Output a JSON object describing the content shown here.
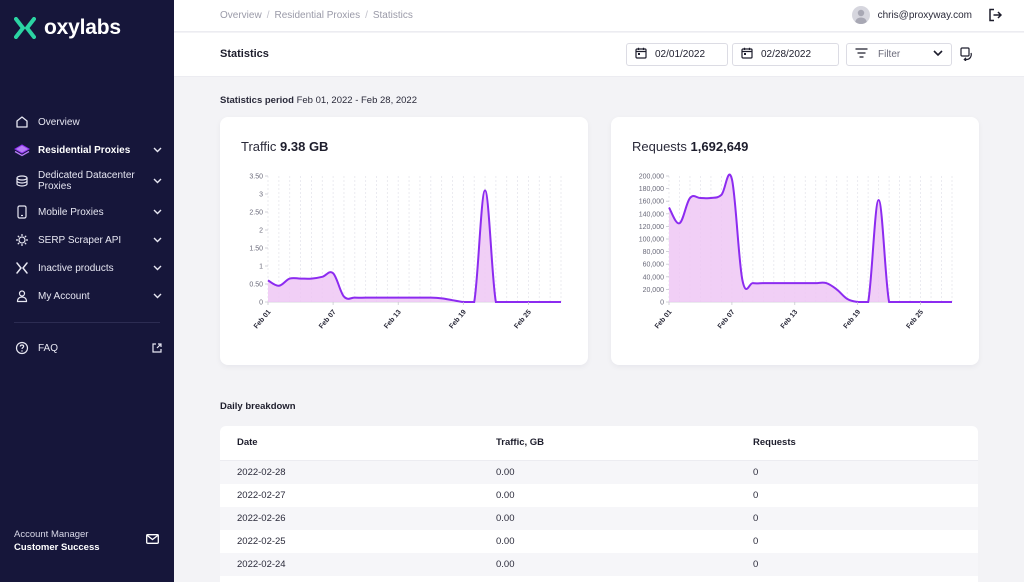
{
  "brand": {
    "name": "oxylabs",
    "accent": "#2bd4a3",
    "purple": "#8c2bf0"
  },
  "sidebar": {
    "items": [
      {
        "label": "Overview",
        "icon": "home-icon",
        "expandable": false
      },
      {
        "label": "Residential Proxies",
        "icon": "residential-icon",
        "expandable": true,
        "active": true
      },
      {
        "label": "Dedicated Datacenter Proxies",
        "line1": "Dedicated Datacenter",
        "line2": "Proxies",
        "icon": "datacenter-icon",
        "expandable": true
      },
      {
        "label": "Mobile Proxies",
        "icon": "mobile-icon",
        "expandable": true
      },
      {
        "label": "SERP Scraper API",
        "icon": "scraper-icon",
        "expandable": true
      },
      {
        "label": "Inactive products",
        "icon": "inactive-icon",
        "expandable": true
      },
      {
        "label": "My Account",
        "icon": "user-icon",
        "expandable": true
      }
    ],
    "faq": {
      "label": "FAQ"
    },
    "account_manager": {
      "label": "Account Manager",
      "name": "Customer Success"
    }
  },
  "topbar": {
    "breadcrumb": [
      "Overview",
      "Residential Proxies",
      "Statistics"
    ],
    "user_email": "chris@proxyway.com"
  },
  "header": {
    "title": "Statistics",
    "date_from": "02/01/2022",
    "date_to": "02/28/2022",
    "filter_label": "Filter"
  },
  "period": {
    "label": "Statistics period",
    "value": "Feb 01, 2022 - Feb 28, 2022"
  },
  "chart_data": [
    {
      "type": "area",
      "title": "Traffic",
      "total": "9.38 GB",
      "ylim": [
        0,
        3.5
      ],
      "yticks": [
        "0",
        "0.50",
        "1",
        "1.50",
        "2",
        "2.50",
        "3",
        "3.50"
      ],
      "xticks": [
        "Feb 01",
        "Feb 07",
        "Feb 13",
        "Feb 19",
        "Feb 25"
      ],
      "x": [
        "Feb 01",
        "Feb 02",
        "Feb 03",
        "Feb 04",
        "Feb 05",
        "Feb 06",
        "Feb 07",
        "Feb 08",
        "Feb 09",
        "Feb 10",
        "Feb 11",
        "Feb 12",
        "Feb 13",
        "Feb 14",
        "Feb 15",
        "Feb 16",
        "Feb 17",
        "Feb 18",
        "Feb 19",
        "Feb 20",
        "Feb 21",
        "Feb 22",
        "Feb 23",
        "Feb 24",
        "Feb 25",
        "Feb 26",
        "Feb 27",
        "Feb 28"
      ],
      "values": [
        0.6,
        0.45,
        0.65,
        0.65,
        0.65,
        0.7,
        0.8,
        0.15,
        0.12,
        0.12,
        0.12,
        0.12,
        0.12,
        0.12,
        0.12,
        0.12,
        0.1,
        0.05,
        0.0,
        0.0,
        3.1,
        0.0,
        0.0,
        0.0,
        0.0,
        0.0,
        0.0,
        0.0
      ],
      "grid": true
    },
    {
      "type": "area",
      "title": "Requests",
      "total": "1,692,649",
      "ylim": [
        0,
        200000
      ],
      "yticks": [
        "0",
        "20,000",
        "40,000",
        "60,000",
        "80,000",
        "100,000",
        "120,000",
        "140,000",
        "160,000",
        "180,000",
        "200,000"
      ],
      "xticks": [
        "Feb 01",
        "Feb 07",
        "Feb 13",
        "Feb 19",
        "Feb 25"
      ],
      "x": [
        "Feb 01",
        "Feb 02",
        "Feb 03",
        "Feb 04",
        "Feb 05",
        "Feb 06",
        "Feb 07",
        "Feb 08",
        "Feb 09",
        "Feb 10",
        "Feb 11",
        "Feb 12",
        "Feb 13",
        "Feb 14",
        "Feb 15",
        "Feb 16",
        "Feb 17",
        "Feb 18",
        "Feb 19",
        "Feb 20",
        "Feb 21",
        "Feb 22",
        "Feb 23",
        "Feb 24",
        "Feb 25",
        "Feb 26",
        "Feb 27",
        "Feb 28"
      ],
      "values": [
        150000,
        125000,
        165000,
        165000,
        165000,
        170000,
        195000,
        35000,
        30000,
        30000,
        30000,
        30000,
        30000,
        30000,
        30000,
        30000,
        20000,
        5000,
        0,
        0,
        162000,
        0,
        0,
        0,
        0,
        0,
        0,
        0
      ],
      "grid": true
    }
  ],
  "breakdown": {
    "title": "Daily breakdown",
    "columns": [
      "Date",
      "Traffic, GB",
      "Requests"
    ],
    "rows": [
      [
        "2022-02-28",
        "0.00",
        "0"
      ],
      [
        "2022-02-27",
        "0.00",
        "0"
      ],
      [
        "2022-02-26",
        "0.00",
        "0"
      ],
      [
        "2022-02-25",
        "0.00",
        "0"
      ],
      [
        "2022-02-24",
        "0.00",
        "0"
      ]
    ]
  }
}
